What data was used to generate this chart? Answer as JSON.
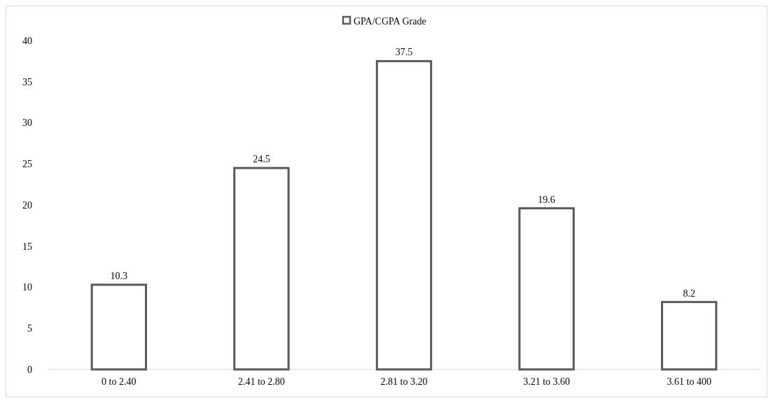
{
  "chart_data": {
    "type": "bar",
    "categories": [
      "0 to 2.40",
      "2.41 to 2.80",
      "2.81 to 3.20",
      "3.21 to 3.60",
      "3.61 to 400"
    ],
    "series": [
      {
        "name": "GPA/CGPA Grade",
        "color": "#595959",
        "values": [
          10.3,
          24.5,
          37.5,
          19.6,
          8.2
        ]
      }
    ],
    "ylim": [
      0,
      40
    ],
    "yticks": [
      0,
      5,
      10,
      15,
      20,
      25,
      30,
      35,
      40
    ],
    "grid": false,
    "legend": "top",
    "data_labels": true
  }
}
